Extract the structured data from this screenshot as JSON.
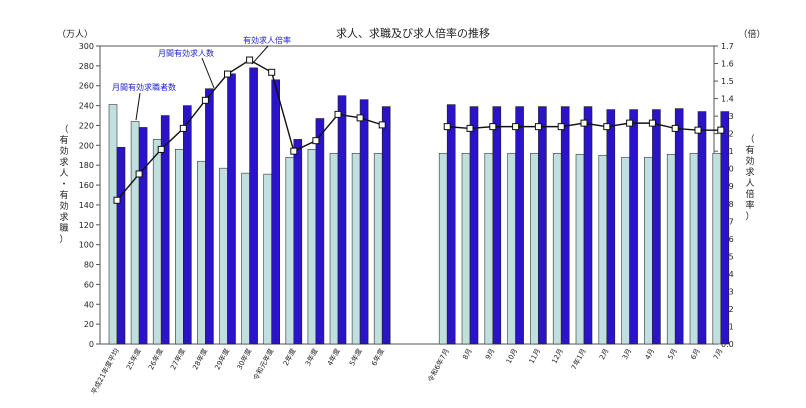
{
  "chart_data": {
    "type": "bar",
    "title": "求人、求職及び求人倍率の推移",
    "left_unit": "（万人）",
    "right_unit": "（倍）",
    "ylabel_left": "（有効求人・有効求職）",
    "ylabel_right": "（有効求人倍率）",
    "ylim_left": [
      0,
      300
    ],
    "ylim_right": [
      0,
      1.7
    ],
    "left_ticks": [
      0,
      20,
      40,
      60,
      80,
      100,
      120,
      140,
      160,
      180,
      200,
      220,
      240,
      260,
      280,
      300
    ],
    "right_ticks": [
      "0.0",
      "0.1",
      "0.2",
      "0.3",
      "0.4",
      "0.5",
      "0.6",
      "0.7",
      "0.8",
      "0.9",
      "1.0",
      "1.1",
      "1.2",
      "1.3",
      "1.4",
      "1.5",
      "1.6",
      "1.7"
    ],
    "categories": [
      "平成21年度平均",
      "25年度",
      "26年度",
      "27年度",
      "28年度",
      "29年度",
      "30年度",
      "令和元年度",
      "2年度",
      "3年度",
      "4年度",
      "5年度",
      "6年度",
      "令和6年7月",
      "8月",
      "9月",
      "10月",
      "11月",
      "12月",
      "7年1月",
      "2月",
      "3月",
      "4月",
      "5月",
      "6月",
      "7月"
    ],
    "group_break_after": 12,
    "series": [
      {
        "name": "月間有効求職者数",
        "color": "#bfe0df",
        "values": [
          241,
          224,
          206,
          196,
          184,
          177,
          172,
          171,
          188,
          196,
          192,
          192,
          192,
          192,
          192,
          192,
          192,
          192,
          192,
          191,
          190,
          188,
          188,
          191,
          192,
          192
        ]
      },
      {
        "name": "月間有効求人数",
        "color": "#2a13c8",
        "values": [
          198,
          218,
          230,
          240,
          257,
          272,
          278,
          266,
          206,
          227,
          250,
          246,
          239,
          241,
          239,
          239,
          239,
          239,
          239,
          239,
          236,
          236,
          236,
          237,
          234,
          234
        ]
      },
      {
        "name": "有効求人倍率",
        "type": "line",
        "axis": "right",
        "values": [
          0.82,
          0.97,
          1.11,
          1.23,
          1.39,
          1.54,
          1.62,
          1.55,
          1.1,
          1.16,
          1.31,
          1.29,
          1.25,
          1.24,
          1.23,
          1.24,
          1.24,
          1.24,
          1.24,
          1.26,
          1.24,
          1.26,
          1.26,
          1.23,
          1.22,
          1.22
        ]
      }
    ]
  }
}
